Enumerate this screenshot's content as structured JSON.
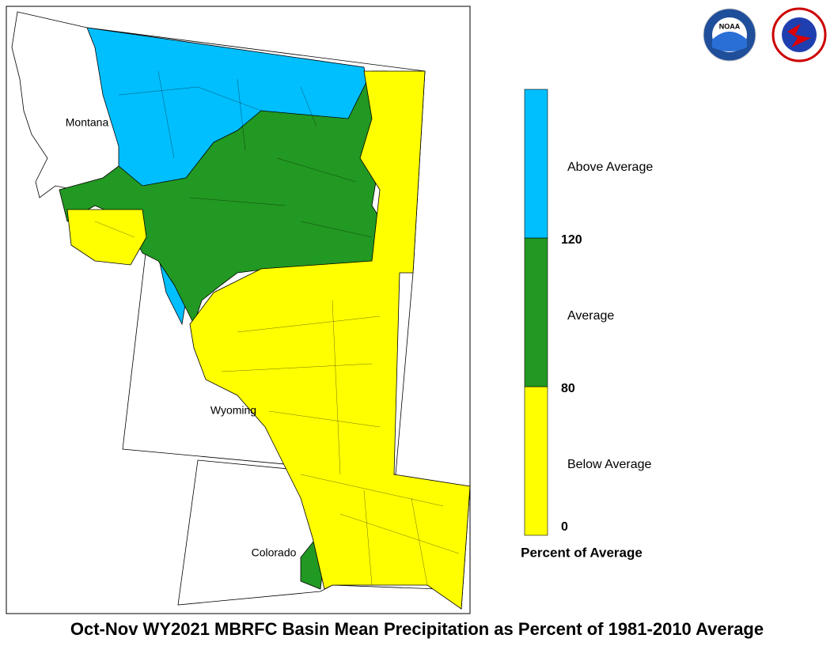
{
  "title": "Oct-Nov WY2021 MBRFC Basin Mean Precipitation as Percent of 1981-2010 Average",
  "states": [
    "Montana",
    "Wyoming",
    "Colorado"
  ],
  "legend": {
    "title": "Percent of Average",
    "entries": [
      {
        "label": "Below Average",
        "color": "#ffff00"
      },
      {
        "label": "Average",
        "color": "#229922"
      },
      {
        "label": "Above Average",
        "color": "#00bfff"
      }
    ],
    "ticks": [
      0,
      80,
      120
    ]
  },
  "logos": [
    "NOAA"
  ]
}
